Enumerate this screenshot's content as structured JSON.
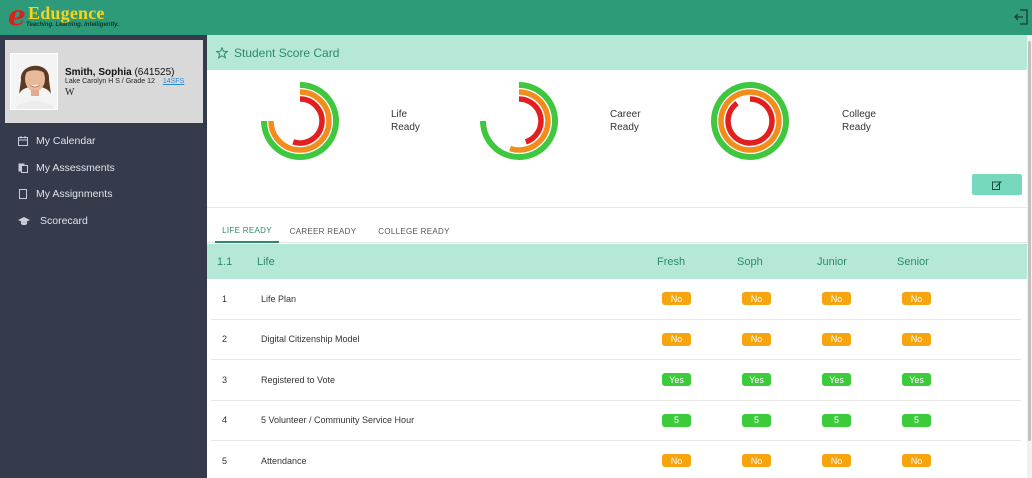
{
  "app": {
    "brand": "Edugence",
    "tagline": "Teaching. Learning. Intelligently.",
    "logo_mark": "e"
  },
  "icons": {
    "logout": "logout-icon",
    "calendar": "calendar-icon",
    "assessments": "documents-icon",
    "assignments": "file-icon",
    "scorecard": "graduation-cap-icon",
    "star": "star-icon",
    "edit": "edit-icon"
  },
  "colors": {
    "topbar": "#2d9a7a",
    "sidebar": "#353b4b",
    "header_band": "#b6e8d8",
    "ring_green": "#3fc83f",
    "ring_orange": "#f28c1c",
    "ring_red": "#e21f1f",
    "badge_no": "#f6a511",
    "badge_yes": "#3bcb3b"
  },
  "profile": {
    "name": "Smith, Sophia",
    "id": "(641525)",
    "school": "Lake Carolyn H S / Grade 12",
    "link": "14SFS",
    "extra": "W"
  },
  "nav": [
    {
      "label": "My Calendar",
      "icon": "calendar-icon"
    },
    {
      "label": "My Assessments",
      "icon": "documents-icon"
    },
    {
      "label": "My Assignments",
      "icon": "file-icon"
    },
    {
      "label": "Scorecard",
      "icon": "graduation-cap-icon"
    }
  ],
  "scorecard": {
    "title": "Student Score Card",
    "gauges": [
      {
        "label_line1": "Life",
        "label_line2": "Ready",
        "rings": [
          0.75,
          0.75,
          0.55
        ]
      },
      {
        "label_line1": "Career",
        "label_line2": "Ready",
        "rings": [
          0.75,
          0.55,
          0.45
        ]
      },
      {
        "label_line1": "College",
        "label_line2": "Ready",
        "rings": [
          1.0,
          1.0,
          0.9
        ]
      }
    ]
  },
  "tabs": [
    {
      "label": "LIFE READY",
      "active": true
    },
    {
      "label": "CAREER READY",
      "active": false
    },
    {
      "label": "COLLEGE READY",
      "active": false
    }
  ],
  "table": {
    "section_no": "1.1",
    "section_title": "Life",
    "columns": [
      "Fresh",
      "Soph",
      "Junior",
      "Senior"
    ],
    "rows": [
      {
        "no": "1",
        "name": "Life Plan",
        "values": [
          "No",
          "No",
          "No",
          "No"
        ],
        "status": "no"
      },
      {
        "no": "2",
        "name": "Digital Citizenship Model",
        "values": [
          "No",
          "No",
          "No",
          "No"
        ],
        "status": "no"
      },
      {
        "no": "3",
        "name": "Registered to Vote",
        "values": [
          "Yes",
          "Yes",
          "Yes",
          "Yes"
        ],
        "status": "yes"
      },
      {
        "no": "4",
        "name": "5 Volunteer / Community Service Hour",
        "values": [
          "5",
          "5",
          "5",
          "5"
        ],
        "status": "yes"
      },
      {
        "no": "5",
        "name": "Attendance",
        "values": [
          "No",
          "No",
          "No",
          "No"
        ],
        "status": "no"
      }
    ]
  }
}
